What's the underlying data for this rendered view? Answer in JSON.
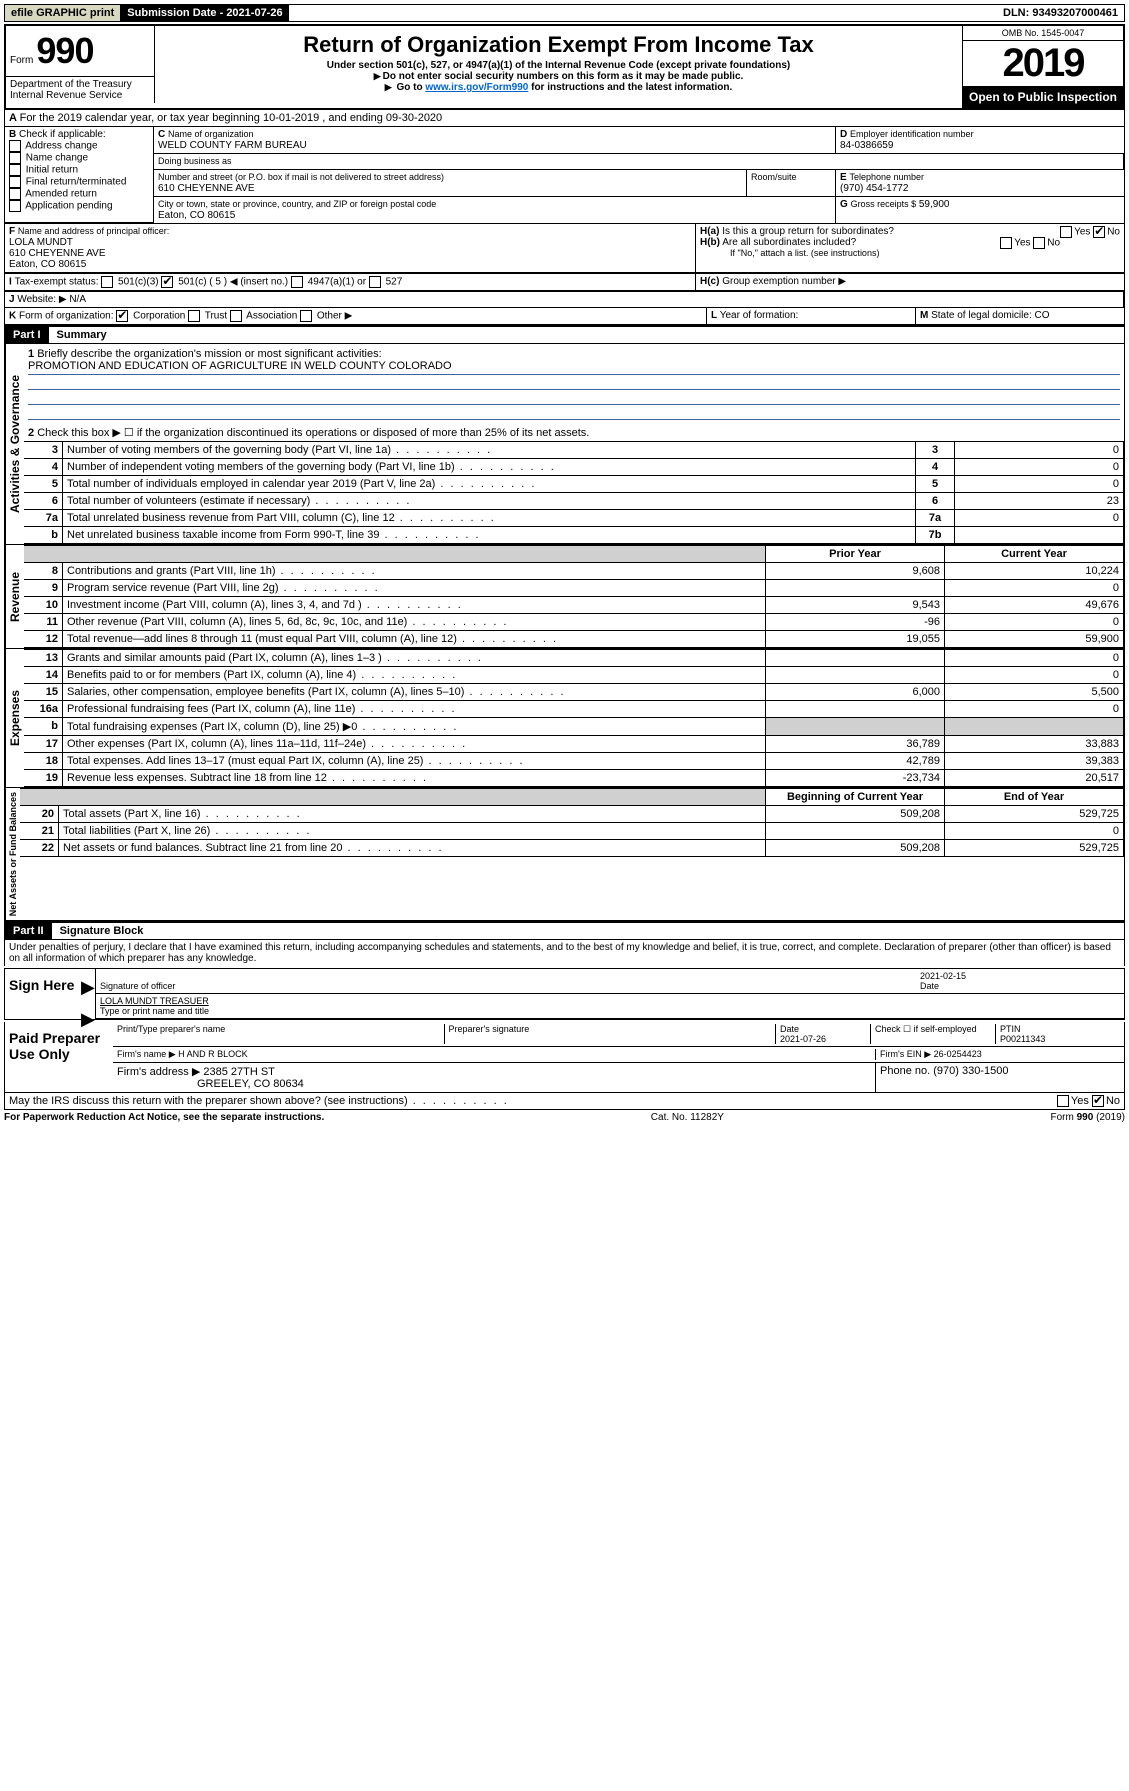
{
  "top": {
    "efile": "efile GRAPHIC print",
    "sub_label": "Submission Date - 2021-07-26",
    "dln": "DLN: 93493207000461"
  },
  "header": {
    "form_prefix": "Form",
    "form_no": "990",
    "title": "Return of Organization Exempt From Income Tax",
    "sub1": "Under section 501(c), 527, or 4947(a)(1) of the Internal Revenue Code (except private foundations)",
    "sub2": "Do not enter social security numbers on this form as it may be made public.",
    "sub3_pre": "Go to ",
    "sub3_link": "www.irs.gov/Form990",
    "sub3_post": " for instructions and the latest information.",
    "dept": "Department of the Treasury\nInternal Revenue Service",
    "omb": "OMB No. 1545-0047",
    "year": "2019",
    "open": "Open to Public Inspection"
  },
  "a_line": {
    "text": "For the 2019 calendar year, or tax year beginning 10-01-2019   , and ending 09-30-2020"
  },
  "b": {
    "label": "Check if applicable:",
    "items": [
      "Address change",
      "Name change",
      "Initial return",
      "Final return/terminated",
      "Amended return",
      "Application pending"
    ]
  },
  "c": {
    "name_label": "Name of organization",
    "name": "WELD COUNTY FARM BUREAU",
    "dba_label": "Doing business as",
    "addr_label": "Number and street (or P.O. box if mail is not delivered to street address)",
    "room_label": "Room/suite",
    "addr": "610 CHEYENNE AVE",
    "city_label": "City or town, state or province, country, and ZIP or foreign postal code",
    "city": "Eaton, CO  80615"
  },
  "d": {
    "label": "Employer identification number",
    "val": "84-0386659"
  },
  "e": {
    "label": "Telephone number",
    "val": "(970) 454-1772"
  },
  "g": {
    "label": "Gross receipts $",
    "val": "59,900"
  },
  "f": {
    "label": "Name and address of principal officer:",
    "name": "LOLA MUNDT",
    "addr1": "610 CHEYENNE AVE",
    "addr2": "Eaton, CO  80615"
  },
  "h": {
    "a": "Is this a group return for subordinates?",
    "b": "Are all subordinates included?",
    "b_note": "If \"No,\" attach a list. (see instructions)",
    "c": "Group exemption number ▶",
    "yes": "Yes",
    "no": "No"
  },
  "i": {
    "label": "Tax-exempt status:",
    "opts": [
      "501(c)(3)",
      "501(c) ( 5 ) ◀ (insert no.)",
      "4947(a)(1) or",
      "527"
    ]
  },
  "j": {
    "label": "Website: ▶",
    "val": "N/A"
  },
  "k": {
    "label": "Form of organization:",
    "opts": [
      "Corporation",
      "Trust",
      "Association",
      "Other ▶"
    ]
  },
  "l": {
    "label": "Year of formation:"
  },
  "m": {
    "label": "State of legal domicile:",
    "val": "CO"
  },
  "part1": {
    "header": "Part I",
    "title": "Summary",
    "q1": "Briefly describe the organization's mission or most significant activities:",
    "mission": "PROMOTION AND EDUCATION OF AGRICULTURE IN WELD COUNTY COLORADO",
    "q2": "Check this box ▶ ☐  if the organization discontinued its operations or disposed of more than 25% of its net assets.",
    "lines_gov": [
      {
        "n": "3",
        "t": "Number of voting members of the governing body (Part VI, line 1a)",
        "box": "3",
        "v": "0"
      },
      {
        "n": "4",
        "t": "Number of independent voting members of the governing body (Part VI, line 1b)",
        "box": "4",
        "v": "0"
      },
      {
        "n": "5",
        "t": "Total number of individuals employed in calendar year 2019 (Part V, line 2a)",
        "box": "5",
        "v": "0"
      },
      {
        "n": "6",
        "t": "Total number of volunteers (estimate if necessary)",
        "box": "6",
        "v": "23"
      },
      {
        "n": "7a",
        "t": "Total unrelated business revenue from Part VIII, column (C), line 12",
        "box": "7a",
        "v": "0"
      },
      {
        "n": "b",
        "t": "Net unrelated business taxable income from Form 990-T, line 39",
        "box": "7b",
        "v": ""
      }
    ],
    "col_prior": "Prior Year",
    "col_current": "Current Year",
    "lines_rev": [
      {
        "n": "8",
        "t": "Contributions and grants (Part VIII, line 1h)",
        "p": "9,608",
        "c": "10,224"
      },
      {
        "n": "9",
        "t": "Program service revenue (Part VIII, line 2g)",
        "p": "",
        "c": "0"
      },
      {
        "n": "10",
        "t": "Investment income (Part VIII, column (A), lines 3, 4, and 7d )",
        "p": "9,543",
        "c": "49,676"
      },
      {
        "n": "11",
        "t": "Other revenue (Part VIII, column (A), lines 5, 6d, 8c, 9c, 10c, and 11e)",
        "p": "-96",
        "c": "0"
      },
      {
        "n": "12",
        "t": "Total revenue—add lines 8 through 11 (must equal Part VIII, column (A), line 12)",
        "p": "19,055",
        "c": "59,900"
      }
    ],
    "lines_exp": [
      {
        "n": "13",
        "t": "Grants and similar amounts paid (Part IX, column (A), lines 1–3 )",
        "p": "",
        "c": "0"
      },
      {
        "n": "14",
        "t": "Benefits paid to or for members (Part IX, column (A), line 4)",
        "p": "",
        "c": "0"
      },
      {
        "n": "15",
        "t": "Salaries, other compensation, employee benefits (Part IX, column (A), lines 5–10)",
        "p": "6,000",
        "c": "5,500"
      },
      {
        "n": "16a",
        "t": "Professional fundraising fees (Part IX, column (A), line 11e)",
        "p": "",
        "c": "0"
      },
      {
        "n": "b",
        "t": "Total fundraising expenses (Part IX, column (D), line 25) ▶0",
        "p": "shaded",
        "c": "shaded"
      },
      {
        "n": "17",
        "t": "Other expenses (Part IX, column (A), lines 11a–11d, 11f–24e)",
        "p": "36,789",
        "c": "33,883"
      },
      {
        "n": "18",
        "t": "Total expenses. Add lines 13–17 (must equal Part IX, column (A), line 25)",
        "p": "42,789",
        "c": "39,383"
      },
      {
        "n": "19",
        "t": "Revenue less expenses. Subtract line 18 from line 12",
        "p": "-23,734",
        "c": "20,517"
      }
    ],
    "col_begin": "Beginning of Current Year",
    "col_end": "End of Year",
    "lines_net": [
      {
        "n": "20",
        "t": "Total assets (Part X, line 16)",
        "p": "509,208",
        "c": "529,725"
      },
      {
        "n": "21",
        "t": "Total liabilities (Part X, line 26)",
        "p": "",
        "c": "0"
      },
      {
        "n": "22",
        "t": "Net assets or fund balances. Subtract line 21 from line 20",
        "p": "509,208",
        "c": "529,725"
      }
    ],
    "vlabels": {
      "gov": "Activities & Governance",
      "rev": "Revenue",
      "exp": "Expenses",
      "net": "Net Assets or Fund Balances"
    }
  },
  "part2": {
    "header": "Part II",
    "title": "Signature Block",
    "decl": "Under penalties of perjury, I declare that I have examined this return, including accompanying schedules and statements, and to the best of my knowledge and belief, it is true, correct, and complete. Declaration of preparer (other than officer) is based on all information of which preparer has any knowledge.",
    "sign_here": "Sign Here",
    "sig_off": "Signature of officer",
    "sig_date": "2021-02-15",
    "date_label": "Date",
    "name_title": "LOLA MUNDT TREASUER",
    "name_title_label": "Type or print name and title",
    "paid": "Paid Preparer Use Only",
    "prep_name_label": "Print/Type preparer's name",
    "prep_sig_label": "Preparer's signature",
    "prep_date_label": "Date",
    "prep_date": "2021-07-26",
    "check_if": "Check ☐ if self-employed",
    "ptin_label": "PTIN",
    "ptin": "P00211343",
    "firm_name_label": "Firm's name   ▶",
    "firm_name": "H AND R BLOCK",
    "firm_ein_label": "Firm's EIN ▶",
    "firm_ein": "26-0254423",
    "firm_addr_label": "Firm's address ▶",
    "firm_addr1": "2385 27TH ST",
    "firm_addr2": "GREELEY, CO  80634",
    "phone_label": "Phone no.",
    "phone": "(970) 330-1500",
    "discuss": "May the IRS discuss this return with the preparer shown above? (see instructions)",
    "yes": "Yes",
    "no": "No"
  },
  "footer": {
    "pra": "For Paperwork Reduction Act Notice, see the separate instructions.",
    "cat": "Cat. No. 11282Y",
    "form": "Form 990 (2019)"
  }
}
